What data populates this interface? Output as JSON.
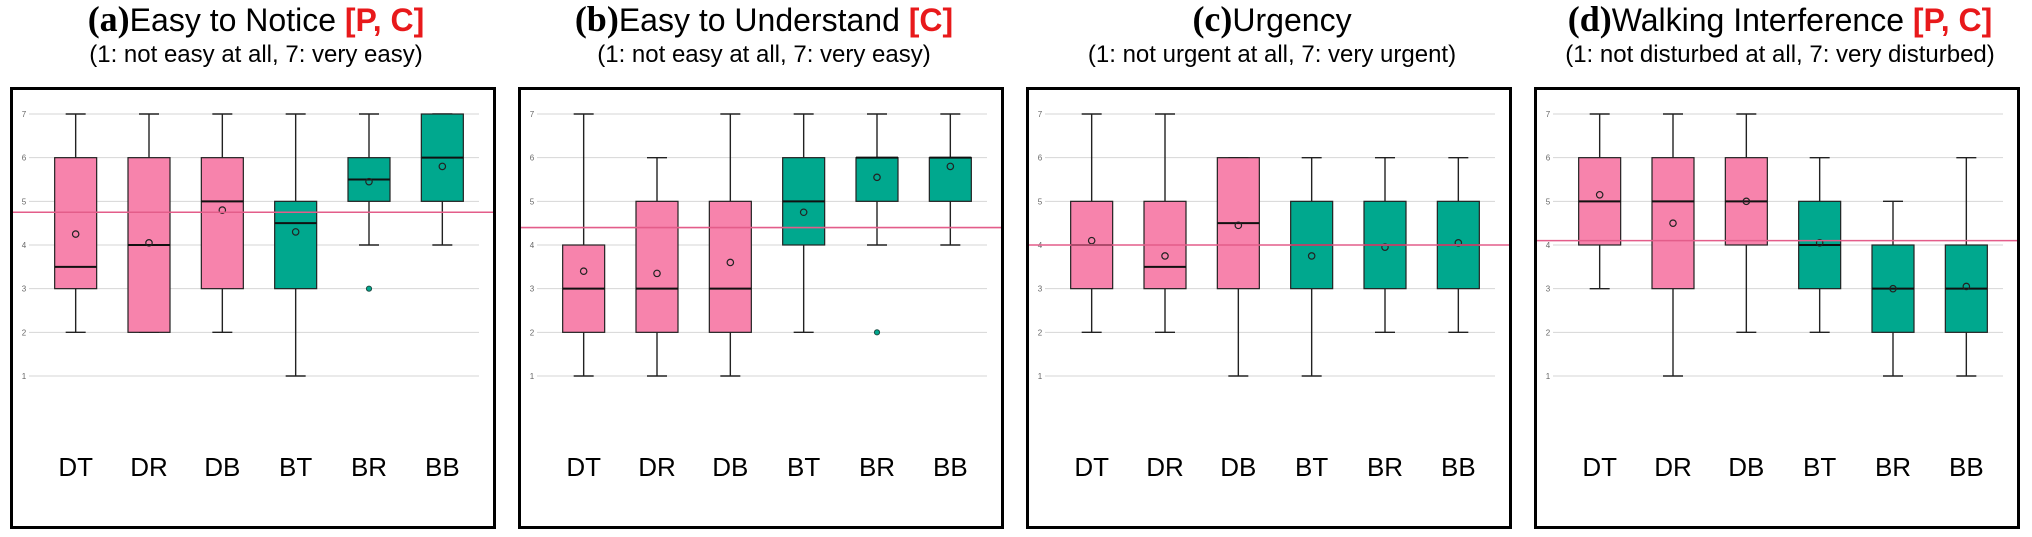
{
  "colors": {
    "pink": "#f783ac",
    "green": "#00a88e",
    "mean_line": "#e35d8a",
    "grid": "#d6d6d6"
  },
  "chart_data": [
    {
      "type": "box",
      "letter": "(a)",
      "title": "Easy to Notice",
      "tag": "[P, C]",
      "subtitle": "(1: not easy at all, 7: very easy)",
      "categories": [
        "DT",
        "DR",
        "DB",
        "BT",
        "BR",
        "BB"
      ],
      "groups": [
        "pink",
        "pink",
        "pink",
        "green",
        "green",
        "green"
      ],
      "yticks": [
        "1",
        "2",
        "3",
        "4",
        "5",
        "6",
        "7"
      ],
      "ylim": [
        1,
        7
      ],
      "overall_mean": 4.75,
      "boxes": [
        {
          "min": 2,
          "q1": 3,
          "median": 3.5,
          "q3": 6,
          "max": 7,
          "mean": 4.25,
          "outliers": []
        },
        {
          "min": 2,
          "q1": 2,
          "median": 4,
          "q3": 6,
          "max": 7,
          "mean": 4.05,
          "outliers": []
        },
        {
          "min": 2,
          "q1": 3,
          "median": 5,
          "q3": 6,
          "max": 7,
          "mean": 4.8,
          "outliers": []
        },
        {
          "min": 1,
          "q1": 3,
          "median": 4.5,
          "q3": 5,
          "max": 7,
          "mean": 4.3,
          "outliers": []
        },
        {
          "min": 4,
          "q1": 5,
          "median": 5.5,
          "q3": 6,
          "max": 7,
          "mean": 5.45,
          "outliers": [
            3
          ]
        },
        {
          "min": 4,
          "q1": 5,
          "median": 6,
          "q3": 7,
          "max": 7,
          "mean": 5.8,
          "outliers": []
        }
      ]
    },
    {
      "type": "box",
      "letter": "(b)",
      "title": "Easy to Understand",
      "tag": "[C]",
      "subtitle": "(1: not easy at all, 7: very easy)",
      "categories": [
        "DT",
        "DR",
        "DB",
        "BT",
        "BR",
        "BB"
      ],
      "groups": [
        "pink",
        "pink",
        "pink",
        "green",
        "green",
        "green"
      ],
      "yticks": [
        "1",
        "2",
        "3",
        "4",
        "5",
        "6",
        "7"
      ],
      "ylim": [
        1,
        7
      ],
      "overall_mean": 4.4,
      "boxes": [
        {
          "min": 1,
          "q1": 2,
          "median": 3,
          "q3": 4,
          "max": 7,
          "mean": 3.4,
          "outliers": []
        },
        {
          "min": 1,
          "q1": 2,
          "median": 3,
          "q3": 5,
          "max": 6,
          "mean": 3.35,
          "outliers": []
        },
        {
          "min": 1,
          "q1": 2,
          "median": 3,
          "q3": 5,
          "max": 7,
          "mean": 3.6,
          "outliers": []
        },
        {
          "min": 2,
          "q1": 4,
          "median": 5,
          "q3": 6,
          "max": 7,
          "mean": 4.75,
          "outliers": []
        },
        {
          "min": 4,
          "q1": 5,
          "median": 6,
          "q3": 6,
          "max": 7,
          "mean": 5.55,
          "outliers": [
            2
          ]
        },
        {
          "min": 4,
          "q1": 5,
          "median": 6,
          "q3": 6,
          "max": 7,
          "mean": 5.8,
          "outliers": []
        }
      ]
    },
    {
      "type": "box",
      "letter": "(c)",
      "title": "Urgency",
      "tag": "",
      "subtitle": "(1: not urgent at all, 7: very urgent)",
      "categories": [
        "DT",
        "DR",
        "DB",
        "BT",
        "BR",
        "BB"
      ],
      "groups": [
        "pink",
        "pink",
        "pink",
        "green",
        "green",
        "green"
      ],
      "yticks": [
        "1",
        "2",
        "3",
        "4",
        "5",
        "6",
        "7"
      ],
      "ylim": [
        1,
        7
      ],
      "overall_mean": 4.0,
      "boxes": [
        {
          "min": 2,
          "q1": 3,
          "median": 4,
          "q3": 5,
          "max": 7,
          "mean": 4.1,
          "outliers": []
        },
        {
          "min": 2,
          "q1": 3,
          "median": 3.5,
          "q3": 5,
          "max": 7,
          "mean": 3.75,
          "outliers": []
        },
        {
          "min": 1,
          "q1": 3,
          "median": 4.5,
          "q3": 6,
          "max": 6,
          "mean": 4.45,
          "outliers": []
        },
        {
          "min": 1,
          "q1": 3,
          "median": 4,
          "q3": 5,
          "max": 6,
          "mean": 3.75,
          "outliers": []
        },
        {
          "min": 2,
          "q1": 3,
          "median": 4,
          "q3": 5,
          "max": 6,
          "mean": 3.95,
          "outliers": []
        },
        {
          "min": 2,
          "q1": 3,
          "median": 4,
          "q3": 5,
          "max": 6,
          "mean": 4.05,
          "outliers": []
        }
      ]
    },
    {
      "type": "box",
      "letter": "(d)",
      "title": "Walking Interference",
      "tag": "[P, C]",
      "subtitle": "(1: not disturbed at all, 7: very disturbed)",
      "categories": [
        "DT",
        "DR",
        "DB",
        "BT",
        "BR",
        "BB"
      ],
      "groups": [
        "pink",
        "pink",
        "pink",
        "green",
        "green",
        "green"
      ],
      "yticks": [
        "1",
        "2",
        "3",
        "4",
        "5",
        "6",
        "7"
      ],
      "ylim": [
        1,
        7
      ],
      "overall_mean": 4.1,
      "boxes": [
        {
          "min": 3,
          "q1": 4,
          "median": 5,
          "q3": 6,
          "max": 7,
          "mean": 5.15,
          "outliers": []
        },
        {
          "min": 1,
          "q1": 3,
          "median": 5,
          "q3": 6,
          "max": 7,
          "mean": 4.5,
          "outliers": []
        },
        {
          "min": 2,
          "q1": 4,
          "median": 5,
          "q3": 6,
          "max": 7,
          "mean": 5.0,
          "outliers": []
        },
        {
          "min": 2,
          "q1": 3,
          "median": 4,
          "q3": 5,
          "max": 6,
          "mean": 4.05,
          "outliers": []
        },
        {
          "min": 1,
          "q1": 2,
          "median": 3,
          "q3": 4,
          "max": 5,
          "mean": 3.0,
          "outliers": []
        },
        {
          "min": 1,
          "q1": 2,
          "median": 3,
          "q3": 4,
          "max": 6,
          "mean": 3.05,
          "outliers": []
        }
      ]
    }
  ]
}
